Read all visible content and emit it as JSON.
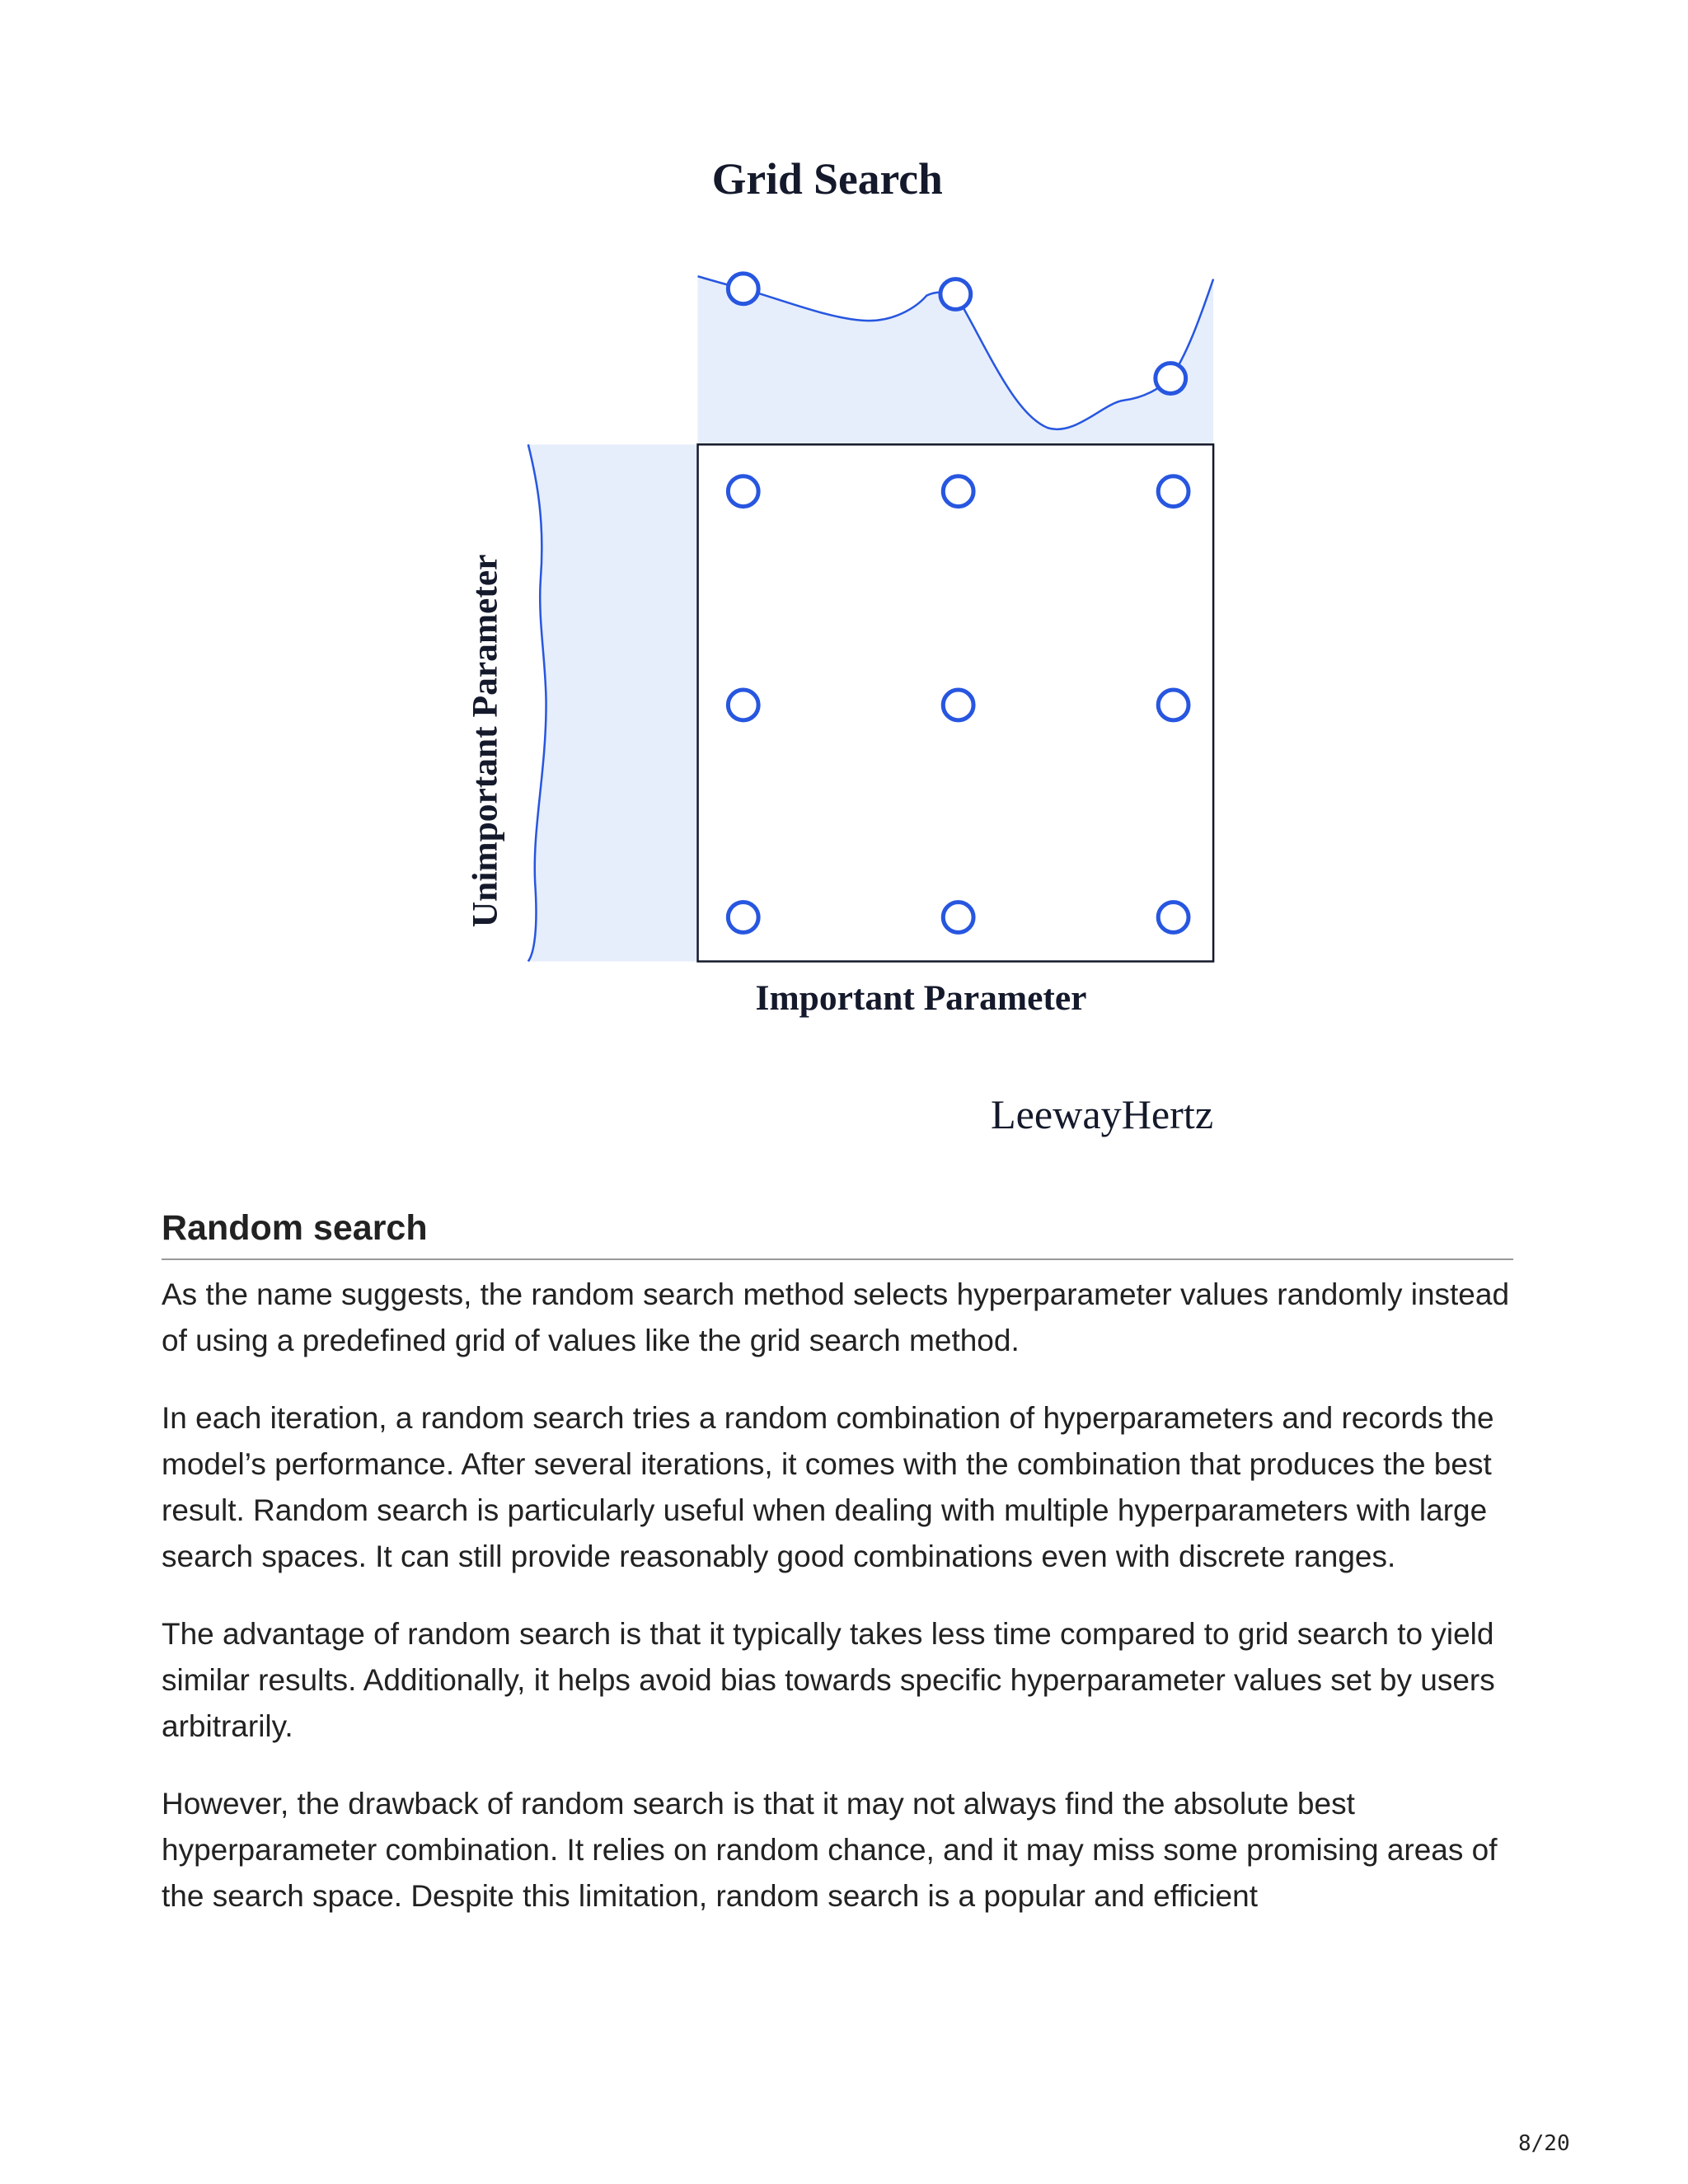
{
  "figure": {
    "title": "Grid Search",
    "y_axis_label": "Unimportant Parameter",
    "x_axis_label": "Important Parameter",
    "brand": "LeewayHertz"
  },
  "section": {
    "heading": "Random search",
    "paragraphs": [
      "As the name suggests, the random search method selects hyperparameter values randomly instead of using a predefined grid of values like the grid search method.",
      "In each iteration, a random search tries a random combination of hyperparameters and records the model’s performance. After several iterations, it comes with the combination that produces the best result. Random search is particularly useful when dealing with multiple hyperparameters with large search spaces. It can still provide reasonably good combinations even with discrete ranges.",
      "The advantage of random search is that it typically takes less time compared to grid search to yield similar results. Additionally, it helps avoid bias towards specific hyperparameter values set by users arbitrarily.",
      "However, the drawback of random search is that it may not always find the absolute best hyperparameter combination. It relies on random chance, and it may miss some promising areas of the search space. Despite this limitation, random search is a popular and efficient"
    ]
  },
  "footer": {
    "page_number": "8/20"
  }
}
